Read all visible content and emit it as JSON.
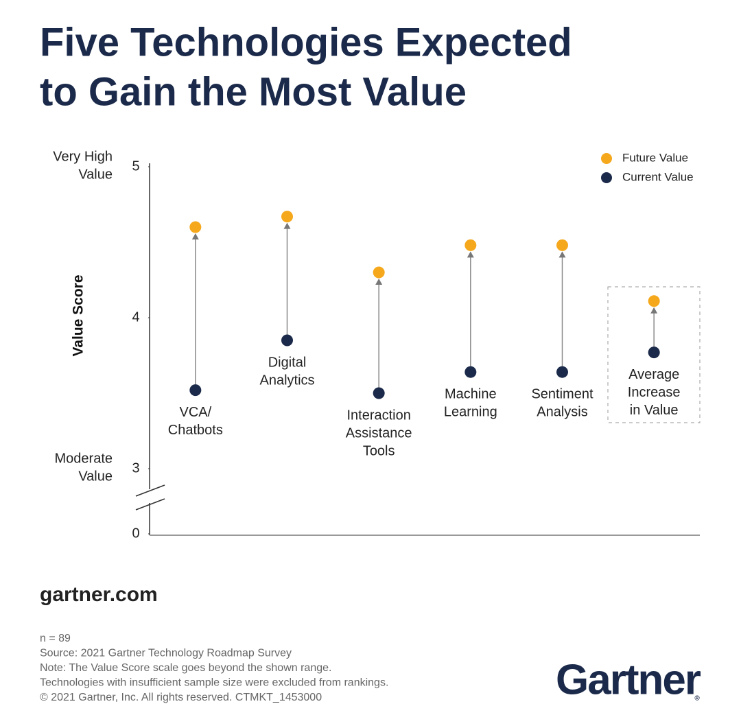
{
  "chart_data": {
    "type": "dumbbell",
    "title": [
      "Five Technologies Expected",
      "to Gain the Most Value"
    ],
    "y_label": "Value Score",
    "y_annotations": [
      {
        "value": 5,
        "lines": [
          "Very High",
          "Value"
        ]
      },
      {
        "value": 3,
        "lines": [
          "Moderate",
          "Value"
        ]
      }
    ],
    "categories": [
      [
        "VCA/",
        "Chatbots"
      ],
      [
        "Digital",
        "Analytics"
      ],
      [
        "Interaction",
        "Assistance",
        "Tools"
      ],
      [
        "Machine",
        "Learning"
      ],
      [
        "Sentiment",
        "Analysis"
      ],
      [
        "Average",
        "Increase",
        "in Value"
      ]
    ],
    "series": [
      {
        "name": "Future Value",
        "color": "#f5a81c",
        "values": [
          4.6,
          4.67,
          4.3,
          4.48,
          4.48,
          4.11
        ]
      },
      {
        "name": "Current Value",
        "color": "#1b2a4a",
        "values": [
          3.52,
          3.85,
          3.5,
          3.64,
          3.64,
          3.77
        ]
      }
    ],
    "ylim": [
      0,
      5
    ],
    "yticks": [
      0,
      3,
      4,
      5
    ],
    "y_break": [
      0,
      3
    ],
    "legend": "top-right",
    "site": "gartner.com",
    "notes": [
      "n = 89",
      "Source: 2021 Gartner Technology Roadmap Survey",
      "Note: The Value Score scale goes beyond the shown range.",
      "Technologies with insufficient sample size were excluded from rankings.",
      "© 2021 Gartner, Inc. All rights reserved. CTMKT_1453000"
    ],
    "logo": "Gartner"
  }
}
